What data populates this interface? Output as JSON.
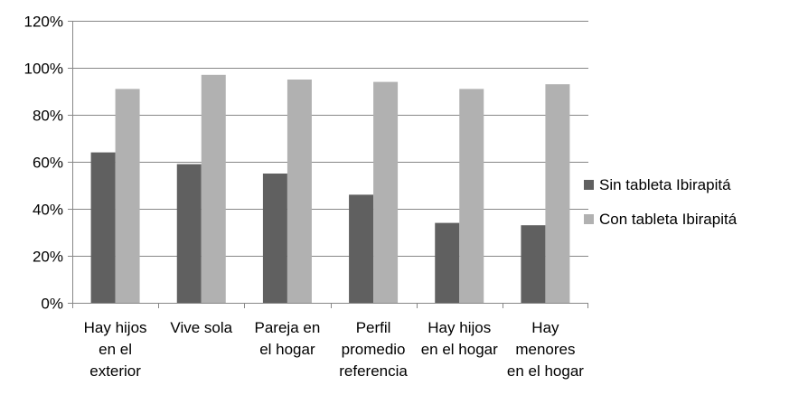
{
  "chart_data": {
    "type": "bar",
    "categories": [
      [
        "Hay hijos",
        "en el",
        "exterior"
      ],
      [
        "Vive sola"
      ],
      [
        "Pareja en",
        "el hogar"
      ],
      [
        "Perfil",
        "promedio",
        "referencia"
      ],
      [
        "Hay hijos",
        "en el hogar"
      ],
      [
        "Hay",
        "menores",
        "en el hogar"
      ]
    ],
    "series": [
      {
        "name": "Sin tableta Ibirapitá",
        "color": "#606060",
        "values": [
          64,
          59,
          55,
          46,
          34,
          33
        ]
      },
      {
        "name": "Con tableta Ibirapitá",
        "color": "#b1b1b1",
        "values": [
          91,
          97,
          95,
          94,
          91,
          93
        ]
      }
    ],
    "ylim": [
      0,
      120
    ],
    "yticks": [
      0,
      20,
      40,
      60,
      80,
      100,
      120
    ],
    "ytick_labels": [
      "0%",
      "20%",
      "40%",
      "60%",
      "80%",
      "100%",
      "120%"
    ],
    "grid": true,
    "legend_position": "right"
  }
}
